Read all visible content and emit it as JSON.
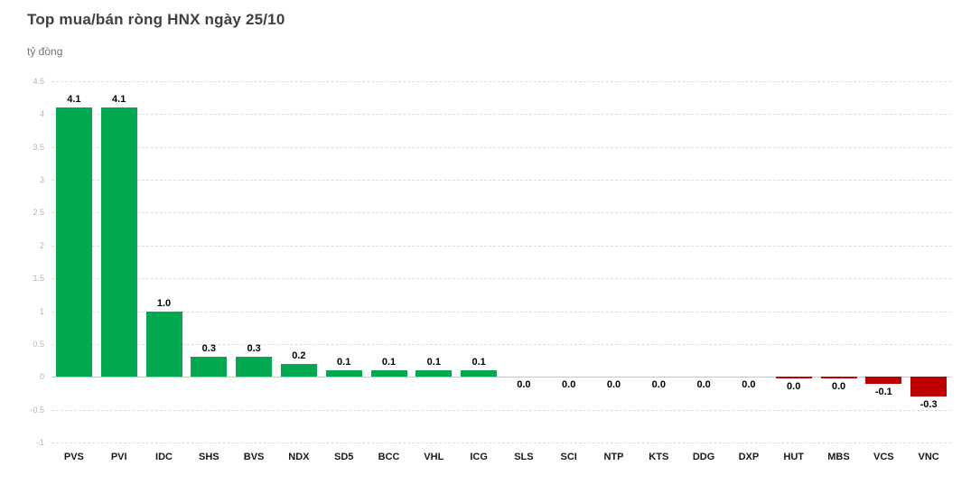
{
  "header": {
    "title": "Top mua/bán ròng HNX ngày 25/10",
    "unit_label": "tỷ đồng"
  },
  "chart_data": {
    "type": "bar",
    "title": "Top mua/bán ròng HNX ngày 25/10",
    "xlabel": "",
    "ylabel": "tỷ đồng",
    "ylim": [
      -1,
      4.5
    ],
    "ytick_step": 0.5,
    "y_ticks": [
      "4.5",
      "4",
      "3.5",
      "3",
      "2.5",
      "2",
      "1.5",
      "1",
      "0.5",
      "0",
      "-0.5",
      "-1"
    ],
    "grid": true,
    "legend": false,
    "categories": [
      "PVS",
      "PVI",
      "IDC",
      "SHS",
      "BVS",
      "NDX",
      "SD5",
      "BCC",
      "VHL",
      "ICG",
      "SLS",
      "SCI",
      "NTP",
      "KTS",
      "DDG",
      "DXP",
      "HUT",
      "MBS",
      "VCS",
      "VNC"
    ],
    "values": [
      4.1,
      4.1,
      1.0,
      0.3,
      0.3,
      0.2,
      0.1,
      0.1,
      0.1,
      0.1,
      0.0,
      0.0,
      0.0,
      0.0,
      0.0,
      0.0,
      0.0,
      0.0,
      -0.1,
      -0.3
    ],
    "value_labels": [
      "4.1",
      "4.1",
      "1.0",
      "0.3",
      "0.3",
      "0.2",
      "0.1",
      "0.1",
      "0.1",
      "0.1",
      "0.0",
      "0.0",
      "0.0",
      "0.0",
      "0.0",
      "0.0",
      "0.0",
      "0.0",
      "-0.1",
      "-0.3"
    ],
    "bar_render_values": [
      4.1,
      4.1,
      1.0,
      0.3,
      0.3,
      0.2,
      0.1,
      0.1,
      0.1,
      0.1,
      0,
      0,
      0,
      0,
      0,
      0,
      -0.02,
      -0.02,
      -0.1,
      -0.3
    ],
    "positive_color": "#00A84F",
    "negative_color": "#C00000"
  }
}
